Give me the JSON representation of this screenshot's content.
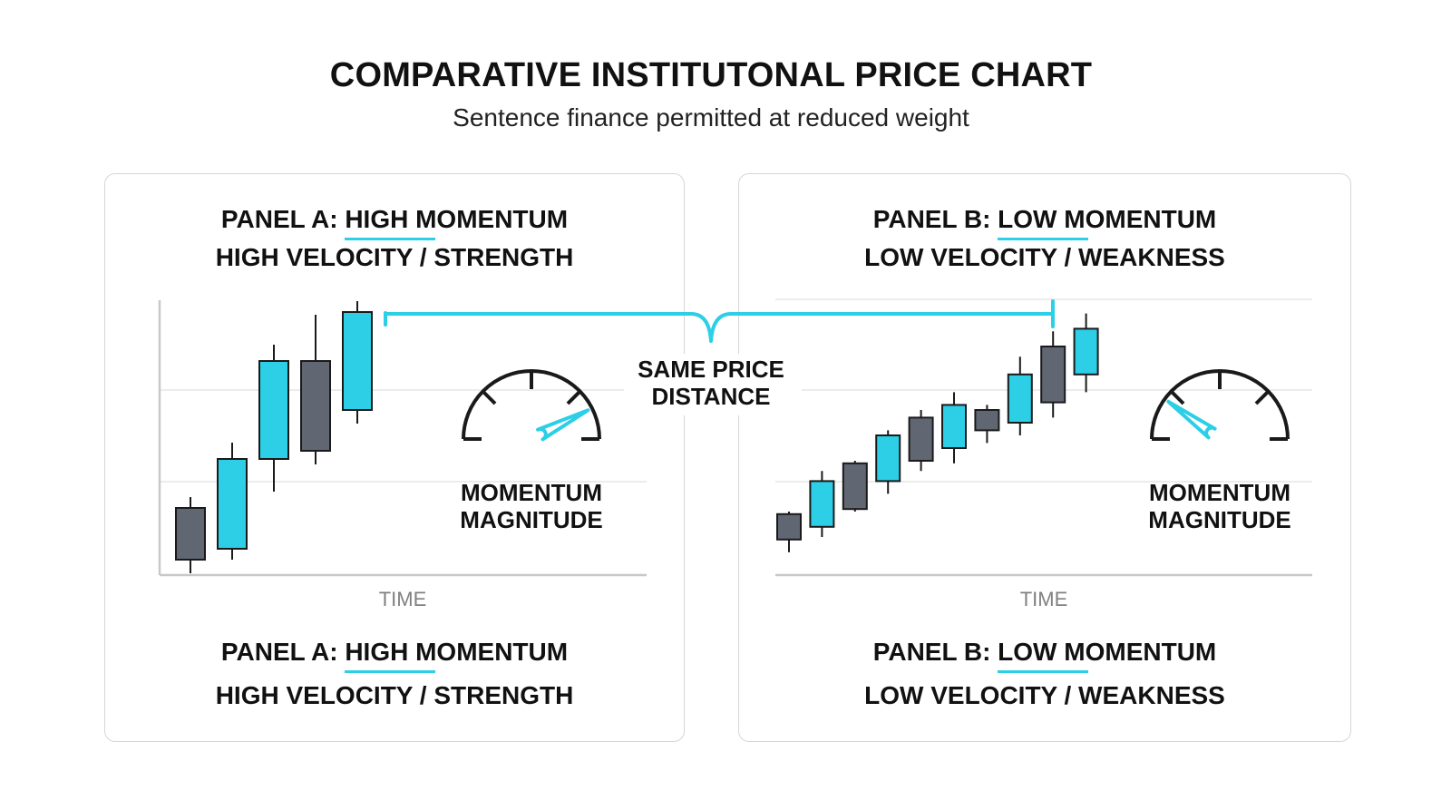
{
  "title": "COMPARATIVE INSTITUTONAL PRICE CHART",
  "subtitle": "Sentence finance permitted at reduced weight",
  "colors": {
    "accent": "#2ccfe6",
    "bearish": "#606672",
    "ink": "#1a1a1a",
    "grid": "#e6e6e6",
    "axis": "#c8c8c8"
  },
  "annotation": {
    "line1": "SAME PRICE",
    "line2": "DISTANCE"
  },
  "panel_a": {
    "top": {
      "prefix": "PANEL A: ",
      "highlight": "HIGH",
      "rest": " MOMENTUM",
      "line2": "HIGH VELOCITY / STRENGTH"
    },
    "bottom": {
      "prefix": "PANEL A: ",
      "highlight": "HIGH",
      "rest": " MOMENTUM",
      "line2": "HIGH VELOCITY / STRENGTH"
    },
    "gauge": {
      "line1": "MOMENTUM",
      "line2": "MAGNITUDE",
      "level": 0.85
    },
    "xlabel": "TIME"
  },
  "panel_b": {
    "top": {
      "prefix": "PANEL B: ",
      "highlight": "LOW",
      "rest": " MOMENTUM",
      "line2": "LOW VELOCITY / WEAKNESS"
    },
    "bottom": {
      "prefix": "PANEL B: ",
      "highlight": "LOW",
      "rest": " MOMENTUM",
      "line2": "LOW VELOCITY / WEAKNESS"
    },
    "gauge": {
      "line1": "MOMENTUM",
      "line2": "MAGNITUDE",
      "level": 0.2
    },
    "xlabel": "TIME"
  },
  "chart_data": [
    {
      "type": "candlestick",
      "name": "Panel A",
      "xlabel": "TIME",
      "ylim": [
        0,
        100
      ],
      "candles": [
        {
          "open": 5,
          "high": 28,
          "low": 0,
          "close": 24,
          "dir": "down"
        },
        {
          "open": 9,
          "high": 48,
          "low": 5,
          "close": 42,
          "dir": "up"
        },
        {
          "open": 42,
          "high": 84,
          "low": 30,
          "close": 78,
          "dir": "up"
        },
        {
          "open": 45,
          "high": 95,
          "low": 40,
          "close": 78,
          "dir": "down"
        },
        {
          "open": 60,
          "high": 100,
          "low": 55,
          "close": 96,
          "dir": "up"
        }
      ]
    },
    {
      "type": "candlestick",
      "name": "Panel B",
      "xlabel": "TIME",
      "ylim": [
        0,
        100
      ],
      "candles": [
        {
          "open": 9,
          "high": 20,
          "low": 4,
          "close": 19,
          "dir": "down"
        },
        {
          "open": 14,
          "high": 36,
          "low": 10,
          "close": 32,
          "dir": "up"
        },
        {
          "open": 21,
          "high": 40,
          "low": 20,
          "close": 39,
          "dir": "down"
        },
        {
          "open": 32,
          "high": 52,
          "low": 27,
          "close": 50,
          "dir": "up"
        },
        {
          "open": 40,
          "high": 60,
          "low": 36,
          "close": 57,
          "dir": "down"
        },
        {
          "open": 45,
          "high": 67,
          "low": 39,
          "close": 62,
          "dir": "up"
        },
        {
          "open": 52,
          "high": 62,
          "low": 47,
          "close": 60,
          "dir": "down"
        },
        {
          "open": 55,
          "high": 81,
          "low": 50,
          "close": 74,
          "dir": "up"
        },
        {
          "open": 63,
          "high": 91,
          "low": 57,
          "close": 85,
          "dir": "down"
        },
        {
          "open": 74,
          "high": 98,
          "low": 67,
          "close": 92,
          "dir": "up"
        }
      ]
    }
  ]
}
